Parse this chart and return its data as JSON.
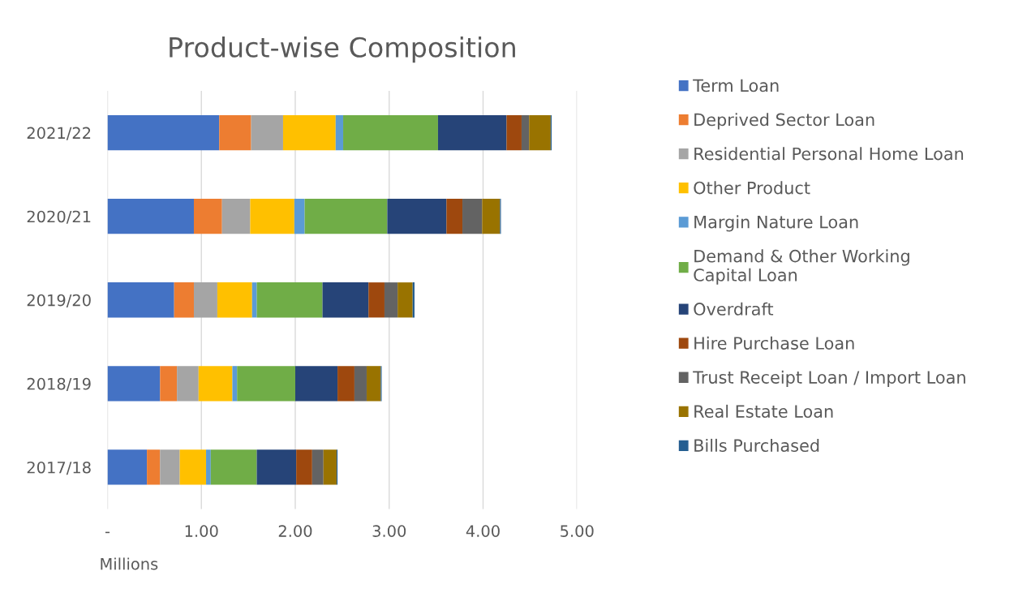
{
  "chart_data": {
    "type": "bar",
    "orientation": "horizontal",
    "stacked": true,
    "title": "Product-wise Composition",
    "xlabel": "Millions",
    "categories": [
      "2021/22",
      "2020/21",
      "2019/20",
      "2018/19",
      "2017/18"
    ],
    "series": [
      {
        "name": "Term Loan",
        "color": "#4472c4",
        "values": [
          1.19,
          0.92,
          0.71,
          0.56,
          0.42
        ]
      },
      {
        "name": "Deprived Sector Loan",
        "color": "#ed7d31",
        "values": [
          0.34,
          0.3,
          0.21,
          0.18,
          0.14
        ]
      },
      {
        "name": "Residential Personal Home Loan",
        "color": "#a5a5a5",
        "values": [
          0.34,
          0.3,
          0.25,
          0.23,
          0.21
        ]
      },
      {
        "name": "Other Product",
        "color": "#ffc000",
        "values": [
          0.56,
          0.47,
          0.37,
          0.36,
          0.28
        ]
      },
      {
        "name": "Margin Nature Loan",
        "color": "#5b9bd5",
        "values": [
          0.08,
          0.11,
          0.05,
          0.05,
          0.05
        ]
      },
      {
        "name": "Demand & Other Working\nCapital Loan",
        "color": "#70ad47",
        "values": [
          1.01,
          0.88,
          0.7,
          0.62,
          0.49
        ]
      },
      {
        "name": "Overdraft",
        "color": "#264478",
        "values": [
          0.73,
          0.63,
          0.49,
          0.45,
          0.42
        ]
      },
      {
        "name": "Hire Purchase Loan",
        "color": "#9e480e",
        "values": [
          0.16,
          0.17,
          0.17,
          0.18,
          0.17
        ]
      },
      {
        "name": "Trust Receipt Loan / Import Loan",
        "color": "#636363",
        "values": [
          0.08,
          0.21,
          0.14,
          0.13,
          0.12
        ]
      },
      {
        "name": "Real Estate Loan",
        "color": "#997300",
        "values": [
          0.23,
          0.19,
          0.16,
          0.15,
          0.14
        ]
      },
      {
        "name": "Bills Purchased",
        "color": "#255e91",
        "values": [
          0.01,
          0.01,
          0.02,
          0.01,
          0.01
        ]
      }
    ],
    "xlim": [
      0,
      5
    ],
    "xticks": [
      {
        "value": 0,
        "label": "-"
      },
      {
        "value": 1,
        "label": "1.00"
      },
      {
        "value": 2,
        "label": "2.00"
      },
      {
        "value": 3,
        "label": "3.00"
      },
      {
        "value": 4,
        "label": "4.00"
      },
      {
        "value": 5,
        "label": "5.00"
      }
    ],
    "grid": "x",
    "legend": "right"
  }
}
